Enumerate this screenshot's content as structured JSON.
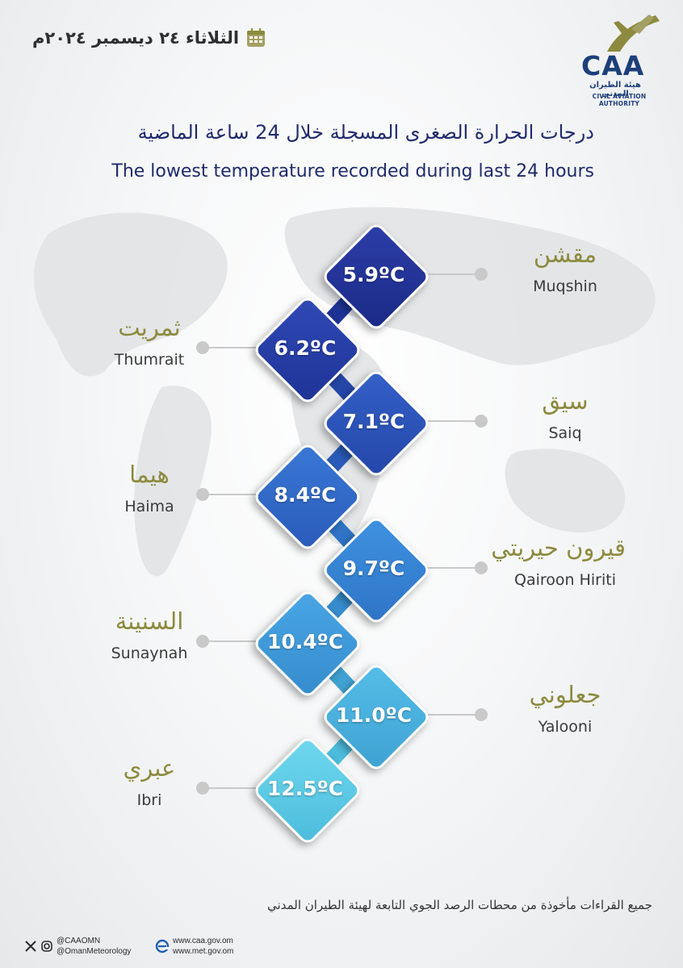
{
  "header": {
    "date": "الثلاثاء ٢٤ ديسمبر ٢٠٢٤م",
    "logo": {
      "abbr": "CAA",
      "arabic": "هيئة الطيران المدني",
      "english": "CIVIL AVIATION AUTHORITY"
    }
  },
  "title": {
    "arabic": "درجات الحرارة الصغرى المسجلة خلال 24 ساعة الماضية",
    "english": "The lowest temperature recorded during last 24 hours"
  },
  "stations": [
    {
      "ar": "مقشن",
      "en": "Muqshin",
      "temp": "5.9ºC",
      "color_top": "#2c3ea8",
      "color_bottom": "#1b2a86"
    },
    {
      "ar": "ثمريت",
      "en": "Thumrait",
      "temp": "6.2ºC",
      "color_top": "#2f49b6",
      "color_bottom": "#1f3396"
    },
    {
      "ar": "سيق",
      "en": "Saiq",
      "temp": "7.1ºC",
      "color_top": "#3460c8",
      "color_bottom": "#2447a8"
    },
    {
      "ar": "هيما",
      "en": "Haima",
      "temp": "8.4ºC",
      "color_top": "#3a78d6",
      "color_bottom": "#2a5bb8"
    },
    {
      "ar": "قيرون حيريتي",
      "en": "Qairoon Hiriti",
      "temp": "9.7ºC",
      "color_top": "#3f92e0",
      "color_bottom": "#2f74c6"
    },
    {
      "ar": "السنينة",
      "en": "Sunaynah",
      "temp": "10.4ºC",
      "color_top": "#49a6e4",
      "color_bottom": "#368ccc"
    },
    {
      "ar": "جعلوني",
      "en": "Yalooni",
      "temp": "11.0ºC",
      "color_top": "#55bde8",
      "color_bottom": "#3fa2d2"
    },
    {
      "ar": "عبري",
      "en": "Ibri",
      "temp": "12.5ºC",
      "color_top": "#6fd8ee",
      "color_bottom": "#4cbcdc"
    }
  ],
  "footer": {
    "note": "جميع القراءات مأخوذة من محطات الرصد الجوي التابعة لهيئة الطيران المدني",
    "social": [
      "@CAAOMN",
      "@OmanMeteorology"
    ],
    "websites": [
      "www.caa.gov.om",
      "www.met.gov.om"
    ]
  },
  "colors": {
    "title": "#1f2b6b",
    "arabic_label": "#8c8a3e",
    "leader": "#c9c9c9"
  }
}
